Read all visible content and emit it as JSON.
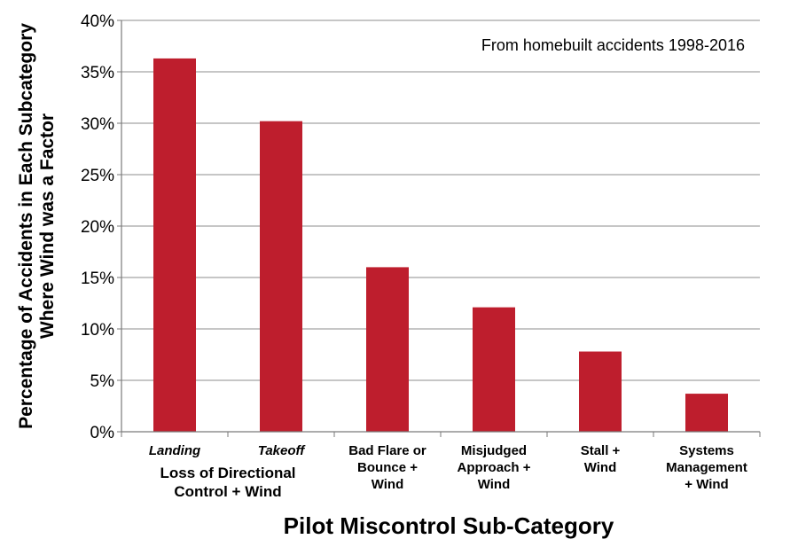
{
  "chart_data": {
    "type": "bar",
    "categories": [
      "Landing",
      "Takeoff",
      "Bad Flare or Bounce + Wind",
      "Misjudged Approach + Wind",
      "Stall + Wind",
      "Systems Management + Wind"
    ],
    "category_lines": [
      [
        "Landing"
      ],
      [
        "Takeoff"
      ],
      [
        "Bad Flare or",
        "Bounce +",
        "Wind"
      ],
      [
        "Misjudged",
        "Approach +",
        "Wind"
      ],
      [
        "Stall +",
        "Wind"
      ],
      [
        "Systems",
        "Management",
        "+ Wind"
      ]
    ],
    "group_label_lines": [
      "Loss of Directional",
      "Control + Wind"
    ],
    "values": [
      36.3,
      30.2,
      16.0,
      12.1,
      7.8,
      3.7
    ],
    "ylim": [
      0,
      40
    ],
    "yticks": [
      0,
      5,
      10,
      15,
      20,
      25,
      30,
      35,
      40
    ],
    "tick_format": "%",
    "ylabel_lines": [
      "Percentage of Accidents in Each Subcategory",
      "Where Wind was a Factor"
    ],
    "xlabel": "Pilot Miscontrol Sub-Category",
    "annotation": "From homebuilt accidents 1998-2016",
    "bar_color": "#be1e2d",
    "grid": true,
    "legend": "none"
  }
}
